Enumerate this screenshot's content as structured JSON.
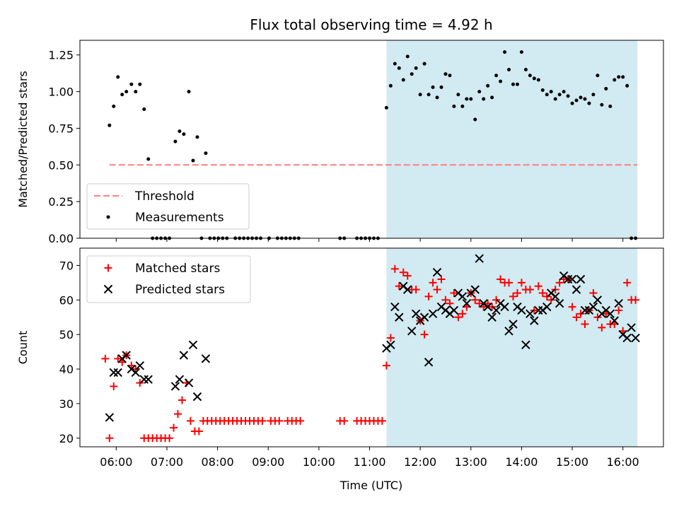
{
  "title": "Flux total observing time = 4.92 h",
  "xlabel": "Time (UTC)",
  "colors": {
    "highlight": "#add8e6",
    "threshold": "#ff7f7f",
    "matched": "#ff0000",
    "predicted": "#000000",
    "measurement": "#000000"
  },
  "chart_data": [
    {
      "type": "scatter",
      "ylabel": "Matched/Predicted stars",
      "ylim": [
        0,
        1.35
      ],
      "xlim": [
        "05:17",
        "16:48"
      ],
      "yticks": [
        "0.00",
        "0.25",
        "0.50",
        "0.75",
        "1.00",
        "1.25"
      ],
      "shaded_interval": [
        "11:20",
        "16:17"
      ],
      "legend": {
        "placement": "lower-left",
        "entries": [
          "Threshold",
          "Measurements"
        ]
      },
      "series": [
        {
          "name": "Threshold",
          "style": "dashed-line",
          "x": [
            "05:52",
            "16:17"
          ],
          "y": [
            0.5,
            0.5
          ]
        },
        {
          "name": "Measurements",
          "style": "dot",
          "x": [
            "05:52",
            "05:57",
            "06:02",
            "06:07",
            "06:12",
            "06:18",
            "06:23",
            "06:28",
            "06:33",
            "06:38",
            "06:43",
            "07:10",
            "07:15",
            "07:20",
            "07:26",
            "07:31",
            "07:36",
            "07:46",
            "06:48",
            "06:53",
            "06:58",
            "07:03",
            "07:41",
            "07:51",
            "07:56",
            "08:01",
            "08:06",
            "08:11",
            "08:21",
            "08:26",
            "08:31",
            "08:36",
            "08:41",
            "08:46",
            "08:51",
            "09:01",
            "09:11",
            "09:16",
            "09:21",
            "09:26",
            "09:31",
            "09:36",
            "10:25",
            "10:30",
            "10:45",
            "10:50",
            "10:55",
            "11:00",
            "11:05",
            "11:10",
            "11:20",
            "11:25",
            "11:30",
            "11:35",
            "11:40",
            "11:45",
            "11:50",
            "11:55",
            "12:00",
            "12:05",
            "12:10",
            "12:15",
            "12:20",
            "12:25",
            "12:30",
            "12:35",
            "12:40",
            "12:45",
            "12:50",
            "12:55",
            "13:00",
            "13:05",
            "13:10",
            "13:15",
            "13:20",
            "13:25",
            "13:30",
            "13:35",
            "13:40",
            "13:45",
            "13:50",
            "13:55",
            "14:00",
            "14:05",
            "14:10",
            "14:15",
            "14:20",
            "14:25",
            "14:30",
            "14:35",
            "14:40",
            "14:45",
            "14:50",
            "14:55",
            "15:00",
            "15:05",
            "15:10",
            "15:15",
            "15:20",
            "15:25",
            "15:30",
            "15:35",
            "15:40",
            "15:45",
            "15:50",
            "15:55",
            "16:00",
            "16:05",
            "16:10",
            "16:15"
          ],
          "y": [
            0.77,
            0.9,
            1.1,
            0.98,
            1.0,
            1.05,
            1.0,
            1.05,
            0.88,
            0.54,
            0.0,
            0.66,
            0.73,
            0.71,
            1.0,
            0.53,
            0.69,
            0.58,
            0.0,
            0.0,
            0.0,
            0.0,
            0.0,
            0.0,
            0.0,
            0.0,
            0.0,
            0.0,
            0.0,
            0.0,
            0.0,
            0.0,
            0.0,
            0.0,
            0.0,
            0.0,
            0.0,
            0.0,
            0.0,
            0.0,
            0.0,
            0.0,
            0.0,
            0.0,
            0.0,
            0.0,
            0.0,
            0.0,
            0.0,
            0.0,
            0.89,
            1.04,
            1.19,
            1.16,
            1.08,
            1.24,
            1.12,
            1.16,
            0.98,
            1.19,
            0.98,
            1.03,
            0.96,
            1.03,
            1.12,
            1.11,
            0.9,
            0.98,
            0.9,
            0.95,
            0.95,
            0.81,
            1.0,
            0.95,
            1.04,
            0.96,
            1.11,
            1.07,
            1.27,
            1.15,
            1.05,
            1.05,
            1.27,
            1.15,
            1.11,
            1.09,
            1.08,
            1.01,
            0.98,
            1.0,
            0.95,
            0.98,
            1.0,
            0.97,
            0.92,
            0.94,
            0.96,
            0.95,
            0.92,
            0.98,
            1.11,
            0.91,
            1.02,
            0.9,
            1.08,
            1.1,
            1.1,
            1.04,
            0.0,
            0.0
          ]
        }
      ]
    },
    {
      "type": "scatter",
      "ylabel": "Count",
      "ylim": [
        17.5,
        75
      ],
      "xlim": [
        "05:17",
        "16:48"
      ],
      "xticks": [
        "06:00",
        "07:00",
        "08:00",
        "09:00",
        "10:00",
        "11:00",
        "12:00",
        "13:00",
        "14:00",
        "15:00",
        "16:00"
      ],
      "yticks": [
        "20",
        "30",
        "40",
        "50",
        "60",
        "70"
      ],
      "shaded_interval": [
        "11:20",
        "16:17"
      ],
      "legend": {
        "placement": "top-left",
        "entries": [
          "Matched stars",
          "Predicted stars"
        ]
      },
      "series": [
        {
          "name": "Matched stars",
          "marker": "+",
          "x": [
            "05:47",
            "05:52",
            "05:57",
            "06:02",
            "06:07",
            "06:12",
            "06:18",
            "06:23",
            "06:28",
            "06:33",
            "06:38",
            "06:43",
            "06:48",
            "06:53",
            "06:58",
            "07:03",
            "07:08",
            "07:13",
            "07:18",
            "07:23",
            "07:28",
            "07:33",
            "07:38",
            "07:43",
            "07:48",
            "07:53",
            "07:58",
            "08:03",
            "08:08",
            "08:13",
            "08:18",
            "08:23",
            "08:28",
            "08:33",
            "08:38",
            "08:43",
            "08:48",
            "08:53",
            "09:03",
            "09:08",
            "09:13",
            "09:23",
            "09:28",
            "09:33",
            "09:38",
            "10:25",
            "10:30",
            "10:45",
            "10:50",
            "10:55",
            "11:00",
            "11:05",
            "11:10",
            "11:15",
            "11:20",
            "11:25",
            "11:30",
            "11:35",
            "11:40",
            "11:45",
            "11:50",
            "11:55",
            "12:00",
            "12:05",
            "12:10",
            "12:15",
            "12:20",
            "12:25",
            "12:30",
            "12:35",
            "12:40",
            "12:45",
            "12:50",
            "12:55",
            "13:00",
            "13:05",
            "13:10",
            "13:15",
            "13:20",
            "13:25",
            "13:30",
            "13:35",
            "13:40",
            "13:45",
            "13:50",
            "13:55",
            "14:00",
            "14:05",
            "14:10",
            "14:15",
            "14:20",
            "14:25",
            "14:30",
            "14:35",
            "14:40",
            "14:45",
            "14:50",
            "14:55",
            "15:00",
            "15:05",
            "15:10",
            "15:15",
            "15:20",
            "15:25",
            "15:30",
            "15:35",
            "15:40",
            "15:45",
            "15:50",
            "15:55",
            "16:00",
            "16:05",
            "16:10",
            "16:15"
          ],
          "y": [
            43,
            20,
            35,
            43,
            42,
            44,
            41,
            40,
            36,
            20,
            20,
            20,
            20,
            20,
            20,
            20,
            23,
            27,
            31,
            36,
            25,
            22,
            22,
            25,
            25,
            25,
            25,
            25,
            25,
            25,
            25,
            25,
            25,
            25,
            25,
            25,
            25,
            25,
            25,
            25,
            25,
            25,
            25,
            25,
            25,
            25,
            25,
            25,
            25,
            25,
            25,
            25,
            25,
            25,
            41,
            49,
            69,
            64,
            68,
            67,
            63,
            63,
            54,
            50,
            61,
            65,
            63,
            66,
            60,
            59,
            62,
            55,
            56,
            58,
            62,
            60,
            59,
            58,
            59,
            58,
            60,
            66,
            65,
            65,
            61,
            62,
            65,
            63,
            63,
            57,
            64,
            62,
            61,
            60,
            63,
            65,
            66,
            66,
            58,
            55,
            56,
            53,
            57,
            62,
            55,
            52,
            56,
            53,
            53,
            57,
            51,
            65,
            60,
            60
          ]
        },
        {
          "name": "Predicted stars",
          "marker": "x",
          "x": [
            "05:52",
            "05:57",
            "06:02",
            "06:07",
            "06:12",
            "06:18",
            "06:23",
            "06:28",
            "06:33",
            "06:38",
            "07:10",
            "07:15",
            "07:20",
            "07:26",
            "07:31",
            "07:36",
            "07:46",
            "11:20",
            "11:25",
            "11:30",
            "11:35",
            "11:40",
            "11:45",
            "11:50",
            "11:55",
            "12:00",
            "12:05",
            "12:10",
            "12:15",
            "12:20",
            "12:25",
            "12:30",
            "12:35",
            "12:40",
            "12:45",
            "12:50",
            "12:55",
            "13:00",
            "13:05",
            "13:10",
            "13:15",
            "13:20",
            "13:25",
            "13:30",
            "13:35",
            "13:40",
            "13:45",
            "13:50",
            "13:55",
            "14:00",
            "14:05",
            "14:10",
            "14:15",
            "14:20",
            "14:25",
            "14:30",
            "14:35",
            "14:40",
            "14:45",
            "14:50",
            "14:55",
            "15:00",
            "15:05",
            "15:10",
            "15:15",
            "15:20",
            "15:25",
            "15:30",
            "15:35",
            "15:40",
            "15:45",
            "15:50",
            "15:55",
            "16:00",
            "16:05",
            "16:10",
            "16:15"
          ],
          "y": [
            26,
            39,
            39,
            43,
            44,
            40,
            39,
            41,
            37,
            37,
            35,
            37,
            44,
            36,
            47,
            32,
            43,
            46,
            47,
            58,
            55,
            64,
            63,
            51,
            56,
            54,
            55,
            42,
            56,
            68,
            58,
            57,
            56,
            57,
            62,
            61,
            59,
            62,
            63,
            72,
            59,
            58,
            55,
            57,
            59,
            58,
            51,
            53,
            58,
            57,
            47,
            56,
            54,
            57,
            57,
            58,
            62,
            61,
            59,
            67,
            66,
            66,
            63,
            66,
            57,
            57,
            58,
            60,
            56,
            57,
            56,
            54,
            59,
            50,
            49,
            52,
            49
          ]
        }
      ]
    }
  ]
}
